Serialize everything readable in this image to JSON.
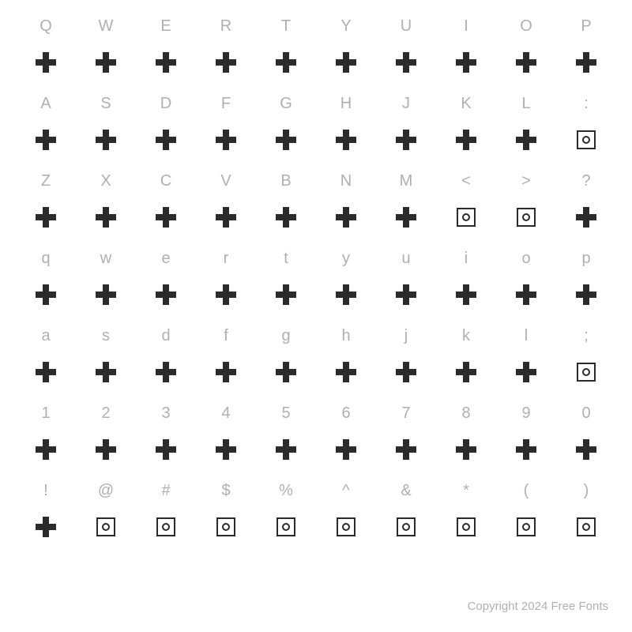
{
  "background_color": "#ffffff",
  "label_color": "#b0b0b0",
  "glyph_color": "#2b2b2b",
  "label_fontsize": 20,
  "footer_text": "Copyright 2024 Free Fonts",
  "rows": [
    {
      "chars": [
        "Q",
        "W",
        "E",
        "R",
        "T",
        "Y",
        "U",
        "I",
        "O",
        "P"
      ],
      "glyph_types": [
        "cross",
        "cross",
        "cross",
        "cross",
        "cross",
        "cross",
        "cross",
        "cross",
        "cross",
        "cross"
      ]
    },
    {
      "chars": [
        "A",
        "S",
        "D",
        "F",
        "G",
        "H",
        "J",
        "K",
        "L",
        ":"
      ],
      "glyph_types": [
        "cross",
        "cross",
        "cross",
        "cross",
        "cross",
        "cross",
        "cross",
        "cross",
        "cross",
        "square"
      ]
    },
    {
      "chars": [
        "Z",
        "X",
        "C",
        "V",
        "B",
        "N",
        "M",
        "<",
        ">",
        "?"
      ],
      "glyph_types": [
        "cross",
        "cross",
        "cross",
        "cross",
        "cross",
        "cross",
        "cross",
        "square",
        "square",
        "cross"
      ]
    },
    {
      "chars": [
        "q",
        "w",
        "e",
        "r",
        "t",
        "y",
        "u",
        "i",
        "o",
        "p"
      ],
      "glyph_types": [
        "cross",
        "cross",
        "cross",
        "cross",
        "cross",
        "cross",
        "cross",
        "cross",
        "cross",
        "cross"
      ]
    },
    {
      "chars": [
        "a",
        "s",
        "d",
        "f",
        "g",
        "h",
        "j",
        "k",
        "l",
        ";"
      ],
      "glyph_types": [
        "cross",
        "cross",
        "cross",
        "cross",
        "cross",
        "cross",
        "cross",
        "cross",
        "cross",
        "square"
      ]
    },
    {
      "chars": [
        "1",
        "2",
        "3",
        "4",
        "5",
        "6",
        "7",
        "8",
        "9",
        "0"
      ],
      "glyph_types": [
        "cross",
        "cross",
        "cross",
        "cross",
        "cross",
        "cross",
        "cross",
        "cross",
        "cross",
        "cross"
      ]
    },
    {
      "chars": [
        "!",
        "@",
        "#",
        "$",
        "%",
        "^",
        "&",
        "*",
        "(",
        ")"
      ],
      "glyph_types": [
        "cross",
        "square",
        "square",
        "square",
        "square",
        "square",
        "square",
        "square",
        "square",
        "square"
      ]
    }
  ]
}
